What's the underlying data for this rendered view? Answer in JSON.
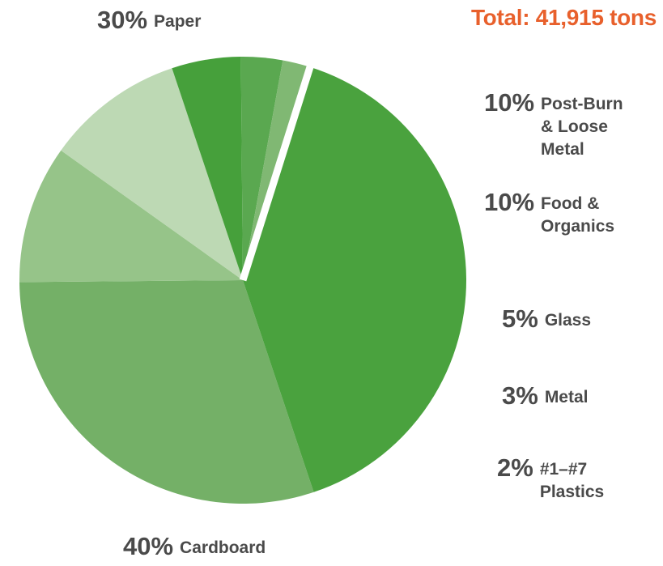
{
  "chart_data": {
    "type": "pie",
    "total_label": "Total: 41,915 tons",
    "slices": [
      {
        "label": "Paper",
        "value": 30,
        "color": "#74b067"
      },
      {
        "label": "Post-Burn & Loose Metal",
        "value": 10,
        "color": "#96c489"
      },
      {
        "label": "Food & Organics",
        "value": 10,
        "color": "#bdd9b4"
      },
      {
        "label": "Glass",
        "value": 5,
        "color": "#46a03b"
      },
      {
        "label": "Metal",
        "value": 3,
        "color": "#5aa850"
      },
      {
        "label": "#1–#7 Plastics",
        "value": 2,
        "color": "#80b873"
      },
      {
        "label": "Cardboard",
        "value": 40,
        "color": "#4aa23e"
      }
    ]
  },
  "labels": [
    {
      "percent": "30%",
      "name": "Paper"
    },
    {
      "percent": "10%",
      "line1": "Post-Burn",
      "line2": "& Loose",
      "line3": "Metal"
    },
    {
      "percent": "10%",
      "line1": "Food &",
      "line2": "Organics"
    },
    {
      "percent": "5%",
      "name": "Glass"
    },
    {
      "percent": "3%",
      "name": "Metal"
    },
    {
      "percent": "2%",
      "line1": "#1–#7",
      "line2": "Plastics"
    },
    {
      "percent": "40%",
      "name": "Cardboard"
    }
  ]
}
